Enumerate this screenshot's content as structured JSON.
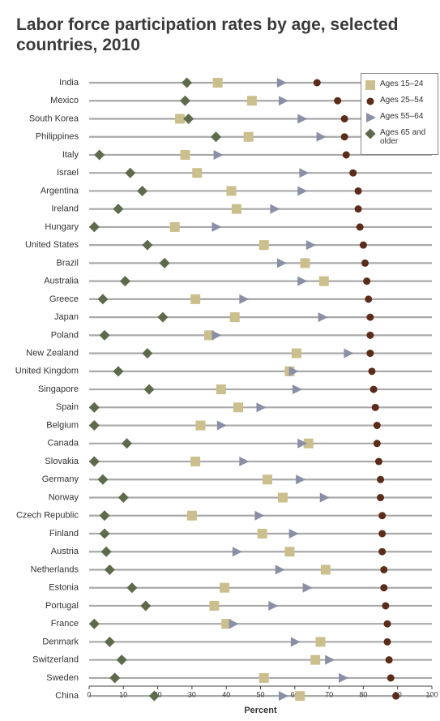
{
  "chart_data": {
    "type": "dot",
    "title": "Labor force participation rates by age, selected countries, 2010",
    "x_label": "Percent",
    "categories": [
      "India",
      "Mexico",
      "South Korea",
      "Philippines",
      "Italy",
      "Israel",
      "Argentina",
      "Ireland",
      "Hungary",
      "United States",
      "Brazil",
      "Australia",
      "Greece",
      "Japan",
      "Poland",
      "New Zealand",
      "United Kingdom",
      "Singapore",
      "Spain",
      "Belgium",
      "Canada",
      "Slovakia",
      "Germany",
      "Norway",
      "Czech Republic",
      "Finland",
      "Austria",
      "Netherlands",
      "Estonia",
      "Portugal",
      "France",
      "Denmark",
      "Switzerland",
      "Sweden",
      "China"
    ],
    "series": [
      {
        "name": "Ages 15–24",
        "color": "#cbbf8e",
        "marker": "square",
        "values": [
          37.5,
          47.5,
          26.5,
          46.5,
          28,
          31.5,
          41.5,
          43,
          25,
          51,
          63,
          68.5,
          31,
          42.5,
          35,
          60.5,
          58.5,
          38.5,
          43.5,
          32.5,
          64,
          31,
          52,
          56.5,
          30,
          50.5,
          58.5,
          69,
          39.5,
          36.5,
          40,
          67.5,
          66,
          51,
          61.5
        ]
      },
      {
        "name": "Ages 25–54",
        "color": "#5a2c19",
        "marker": "circle",
        "values": [
          66.5,
          72.5,
          74.5,
          74.5,
          75,
          77,
          78.5,
          78.5,
          79,
          80,
          80.5,
          81,
          81.5,
          82,
          82,
          82,
          82.5,
          83,
          83.5,
          84,
          84,
          84.5,
          85,
          85,
          85.5,
          85.5,
          85.5,
          86,
          86,
          86.5,
          87,
          87,
          87.5,
          88,
          89.5
        ]
      },
      {
        "name": "Ages 55–64",
        "color": "#8a8fa5",
        "marker": "triangle",
        "values": [
          56,
          56.5,
          62,
          67.5,
          37.5,
          62.5,
          62,
          54,
          37,
          64.5,
          56,
          62,
          45,
          68,
          37,
          75.5,
          59.5,
          60.5,
          50,
          38.5,
          62,
          45,
          61.5,
          68.5,
          49.5,
          59.5,
          43,
          55.5,
          63.5,
          53.5,
          42,
          60,
          70,
          74,
          56.5
        ]
      },
      {
        "name": "Ages 65 and older",
        "color": "#5e6a4c",
        "marker": "diamond",
        "values": [
          28.5,
          28,
          29,
          37,
          3,
          12,
          15.5,
          8.5,
          1.5,
          17,
          22,
          10.5,
          4,
          21.5,
          4.5,
          17,
          8.5,
          17.5,
          1.5,
          1.5,
          11,
          1.5,
          4,
          10,
          4.5,
          4.5,
          5,
          6,
          12.5,
          16.5,
          1.5,
          6,
          9.5,
          7.5,
          19
        ]
      }
    ],
    "xlim": [
      0,
      100
    ],
    "xticks": [
      0,
      10,
      20,
      30,
      40,
      50,
      60,
      70,
      80,
      90,
      100
    ],
    "legend": "top-right"
  }
}
